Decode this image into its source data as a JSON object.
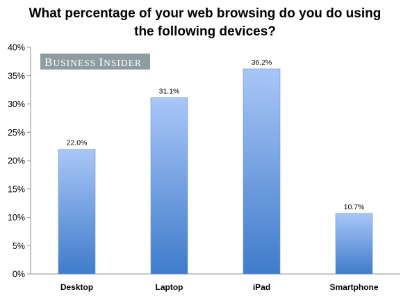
{
  "chart_data": {
    "type": "bar",
    "title_lines": [
      "What percentage of your web browsing do you do using",
      "the following devices?"
    ],
    "categories": [
      "Desktop",
      "Laptop",
      "iPad",
      "Smartphone"
    ],
    "values": [
      22.0,
      31.1,
      36.2,
      10.7
    ],
    "data_labels": [
      "22.0%",
      "31.1%",
      "36.2%",
      "10.7%"
    ],
    "y_ticks": [
      "0%",
      "5%",
      "10%",
      "15%",
      "20%",
      "25%",
      "30%",
      "35%",
      "40%"
    ],
    "ylim": [
      0,
      40
    ],
    "xlabel": "",
    "ylabel": "",
    "grid": false,
    "legend": "none"
  },
  "watermark": {
    "text_b": "B",
    "text_usiness": "USINESS",
    "text_i": "I",
    "text_nsider": "NSIDER",
    "color": "#8E9CA1"
  },
  "colors": {
    "bar_top": "#A9C6F7",
    "bar_bottom": "#3F7CCB",
    "axis": "#8C8C8C"
  }
}
